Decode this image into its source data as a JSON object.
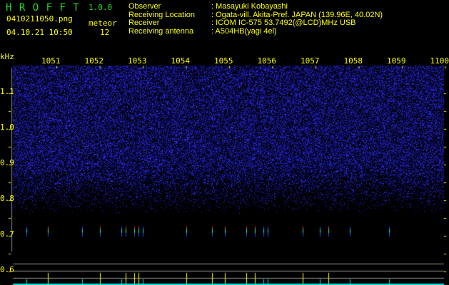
{
  "header": {
    "logo": "H R O F F T",
    "version": "1.0.0",
    "filename": "0410211050.png",
    "datetime": "04.10.21 10:50",
    "meteor_label": "meteor",
    "meteor_count": "12"
  },
  "info": [
    {
      "label": "Observer",
      "value": ": Masayuki Kobayashi"
    },
    {
      "label": "Receiving Location",
      "value": ": Ogata-vill. Akita-Pref. JAPAN (139.96E, 40.02N)"
    },
    {
      "label": "Receiver",
      "value": ": ICOM IC-575 53.7492(@LCD)MHz USB"
    },
    {
      "label": "Receiving antenna",
      "value": ": A504HB(yagi 4el)"
    }
  ],
  "chart_data": {
    "type": "heatmap",
    "xlabel": "",
    "ylabel": "kHz",
    "x_ticks": [
      "1051",
      "1052",
      "1053",
      "1054",
      "1055",
      "1056",
      "1057",
      "1058",
      "1059",
      "1100"
    ],
    "y_ticks": [
      "1.1",
      "1.0",
      "0.9",
      "0.8",
      "0.7",
      "0.6"
    ],
    "colors": {
      "noise": "#1a1aa0",
      "text": "#ffff00",
      "meteor_strong": "#ffff00",
      "meteor_weak": "#00e0e0"
    },
    "meteor_echoes_khz": [
      1050.3,
      1050.8,
      1051.6,
      1052.0,
      1052.5,
      1052.6,
      1052.8,
      1052.9,
      1053.0,
      1054.0,
      1054.6,
      1054.9,
      1055.4,
      1055.6,
      1055.8,
      1055.9,
      1056.7,
      1057.1,
      1057.3,
      1057.8,
      1058.7
    ],
    "strong_echoes_khz": [
      1050.8,
      1052.0,
      1052.6,
      1052.8,
      1052.9,
      1054.0,
      1054.6,
      1054.9,
      1055.4,
      1055.6,
      1056.7,
      1057.3
    ]
  }
}
